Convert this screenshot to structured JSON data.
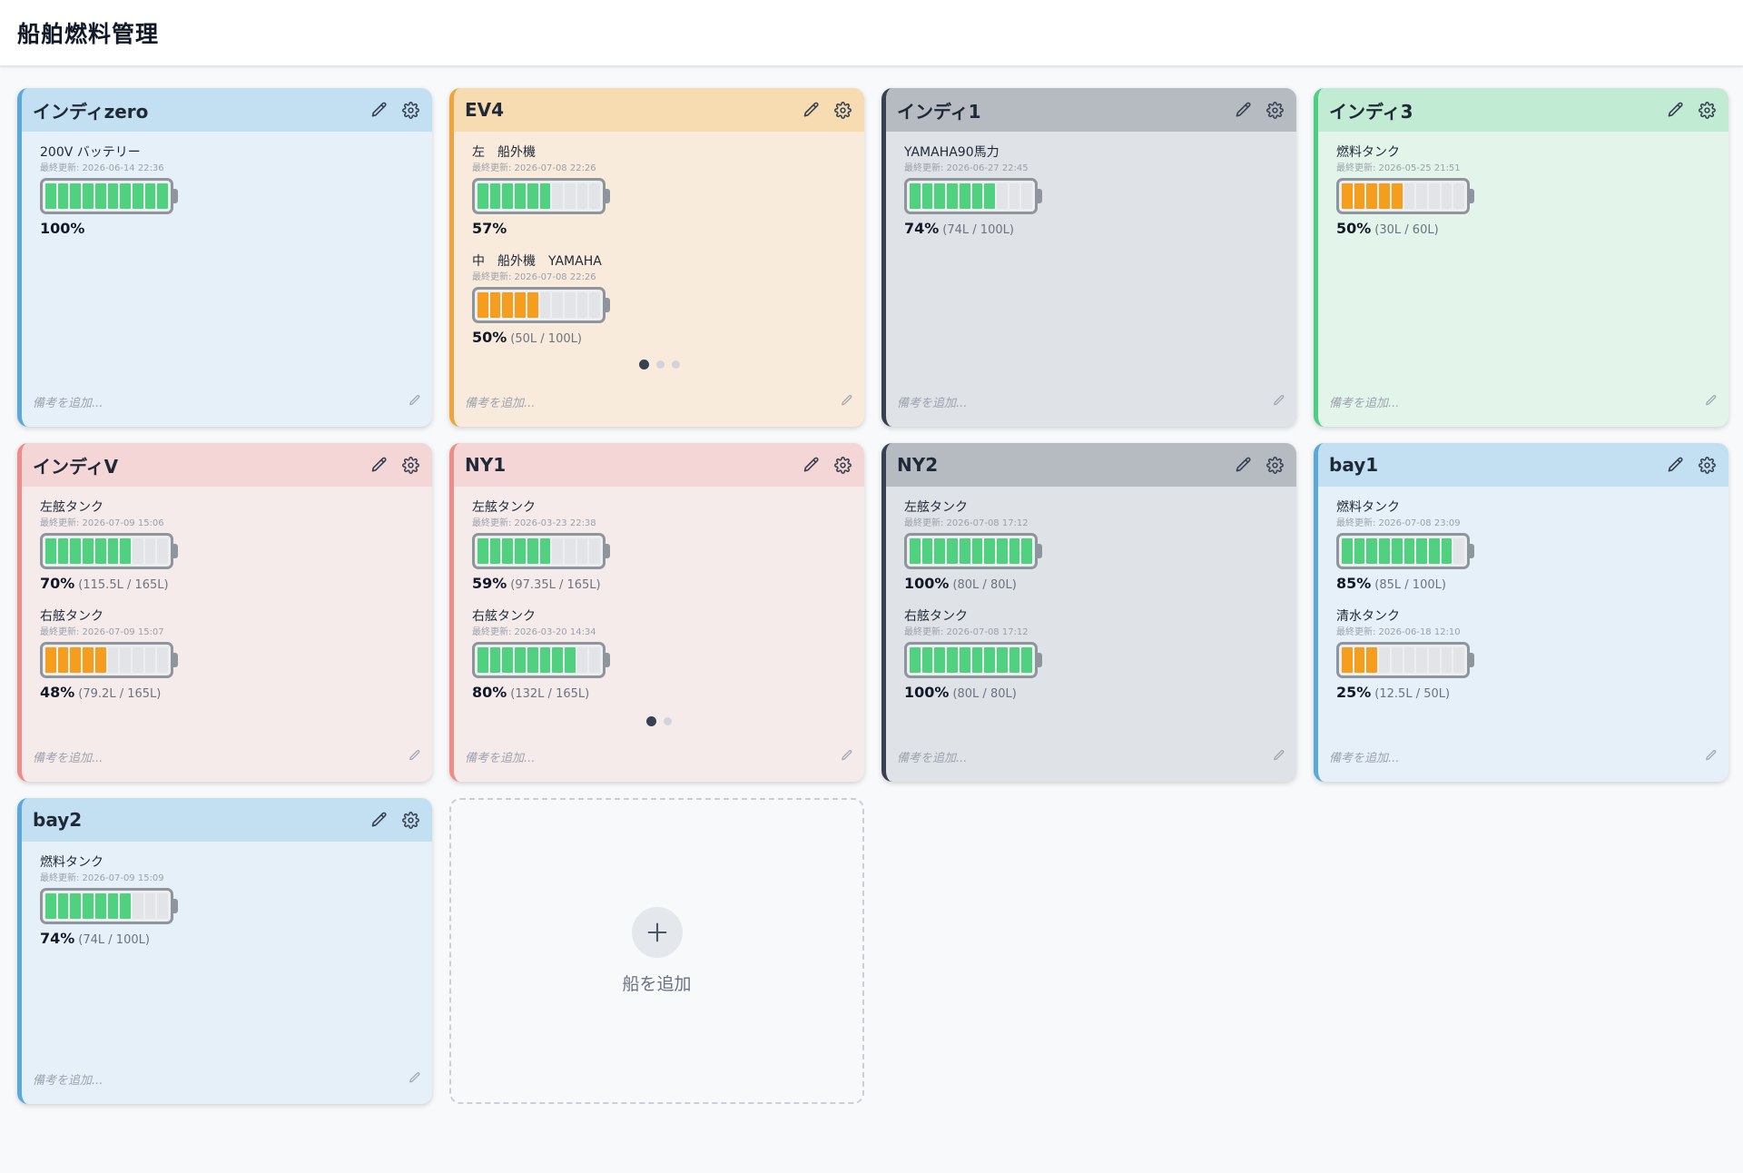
{
  "app": {
    "title": "船舶燃料管理"
  },
  "note_placeholder": "備考を追加...",
  "add_card": {
    "label": "船を追加"
  },
  "icons": {
    "edit": "pencil-icon",
    "settings": "gear-icon",
    "note_edit": "pencil-icon",
    "add": "plus-icon"
  },
  "colors": {
    "green": "#4fd180",
    "orange": "#f59d1c"
  },
  "boats": [
    {
      "name": "インディzero",
      "theme": "blue",
      "tanks": [
        {
          "name": "200V バッテリー",
          "updated": "最終更新: 2026-06-14 22:36",
          "percent": "100%",
          "capacity": "",
          "segments": 10,
          "color": "green"
        }
      ],
      "dots": 0,
      "active_dot": 0
    },
    {
      "name": "EV4",
      "theme": "orange",
      "tanks": [
        {
          "name": "左　船外機",
          "updated": "最終更新: 2026-07-08 22:26",
          "percent": "57%",
          "capacity": "",
          "segments": 6,
          "color": "green"
        },
        {
          "name": "中　船外機　YAMAHA",
          "updated": "最終更新: 2026-07-08 22:26",
          "percent": "50%",
          "capacity": "(50L / 100L)",
          "segments": 5,
          "color": "orange"
        }
      ],
      "dots": 3,
      "active_dot": 0
    },
    {
      "name": "インディ1",
      "theme": "gray",
      "tanks": [
        {
          "name": "YAMAHA90馬力",
          "updated": "最終更新: 2026-06-27 22:45",
          "percent": "74%",
          "capacity": "(74L / 100L)",
          "segments": 7,
          "color": "green"
        }
      ],
      "dots": 0,
      "active_dot": 0
    },
    {
      "name": "インディ3",
      "theme": "green",
      "tanks": [
        {
          "name": "燃料タンク",
          "updated": "最終更新: 2026-05-25 21:51",
          "percent": "50%",
          "capacity": "(30L / 60L)",
          "segments": 5,
          "color": "orange"
        }
      ],
      "dots": 0,
      "active_dot": 0
    },
    {
      "name": "インディV",
      "theme": "red",
      "tanks": [
        {
          "name": "左舷タンク",
          "updated": "最終更新: 2026-07-09 15:06",
          "percent": "70%",
          "capacity": "(115.5L / 165L)",
          "segments": 7,
          "color": "green"
        },
        {
          "name": "右舷タンク",
          "updated": "最終更新: 2026-07-09 15:07",
          "percent": "48%",
          "capacity": "(79.2L / 165L)",
          "segments": 5,
          "color": "orange"
        }
      ],
      "dots": 0,
      "active_dot": 0
    },
    {
      "name": "NY1",
      "theme": "red",
      "tanks": [
        {
          "name": "左舷タンク",
          "updated": "最終更新: 2026-03-23 22:38",
          "percent": "59%",
          "capacity": "(97.35L / 165L)",
          "segments": 6,
          "color": "green"
        },
        {
          "name": "右舷タンク",
          "updated": "最終更新: 2026-03-20 14:34",
          "percent": "80%",
          "capacity": "(132L / 165L)",
          "segments": 8,
          "color": "green"
        }
      ],
      "dots": 2,
      "active_dot": 0
    },
    {
      "name": "NY2",
      "theme": "gray",
      "tanks": [
        {
          "name": "左舷タンク",
          "updated": "最終更新: 2026-07-08 17:12",
          "percent": "100%",
          "capacity": "(80L / 80L)",
          "segments": 10,
          "color": "green"
        },
        {
          "name": "右舷タンク",
          "updated": "最終更新: 2026-07-08 17:12",
          "percent": "100%",
          "capacity": "(80L / 80L)",
          "segments": 10,
          "color": "green"
        }
      ],
      "dots": 0,
      "active_dot": 0
    },
    {
      "name": "bay1",
      "theme": "blue",
      "tanks": [
        {
          "name": "燃料タンク",
          "updated": "最終更新: 2026-07-08 23:09",
          "percent": "85%",
          "capacity": "(85L / 100L)",
          "segments": 9,
          "color": "green"
        },
        {
          "name": "清水タンク",
          "updated": "最終更新: 2026-06-18 12:10",
          "percent": "25%",
          "capacity": "(12.5L / 50L)",
          "segments": 3,
          "color": "orange"
        }
      ],
      "dots": 0,
      "active_dot": 0
    },
    {
      "name": "bay2",
      "theme": "blue",
      "tanks": [
        {
          "name": "燃料タンク",
          "updated": "最終更新: 2026-07-09 15:09",
          "percent": "74%",
          "capacity": "(74L / 100L)",
          "segments": 7,
          "color": "green"
        }
      ],
      "dots": 0,
      "active_dot": 0
    }
  ]
}
